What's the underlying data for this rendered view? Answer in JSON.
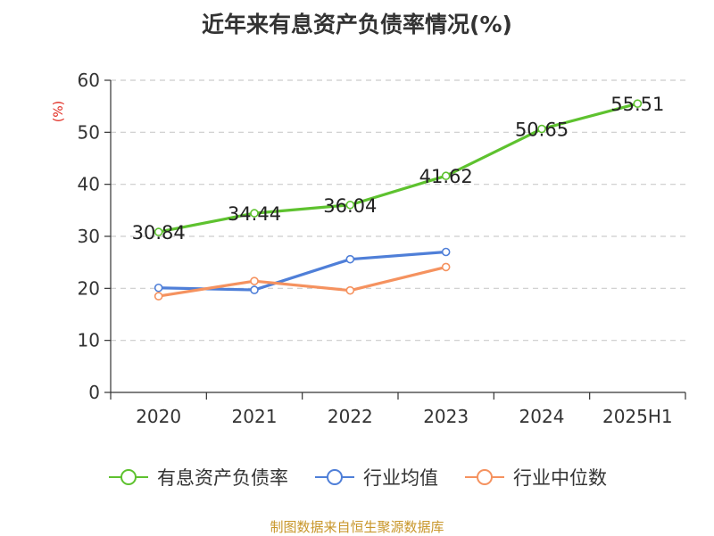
{
  "chart_data": {
    "type": "line",
    "title": "近年来有息资产负债率情况(%)",
    "ylabel": "(%)",
    "xlabel": "",
    "categories": [
      "2020",
      "2021",
      "2022",
      "2023",
      "2024",
      "2025H1"
    ],
    "ylim": [
      0,
      60
    ],
    "yticks": [
      0,
      10,
      20,
      30,
      40,
      50,
      60
    ],
    "grid": true,
    "legend_position": "bottom",
    "series": [
      {
        "name": "有息资产负债率",
        "color": "#5ec22f",
        "values": [
          30.84,
          34.44,
          36.04,
          41.62,
          50.65,
          55.51
        ],
        "labels": [
          "30.84",
          "34.44",
          "36.04",
          "41.62",
          "50.65",
          "55.51"
        ]
      },
      {
        "name": "行业均值",
        "color": "#4f7fd8",
        "values": [
          20.1,
          19.7,
          25.6,
          27.0,
          null,
          null
        ]
      },
      {
        "name": "行业中位数",
        "color": "#f5925f",
        "values": [
          18.5,
          21.4,
          19.6,
          24.1,
          null,
          null
        ]
      }
    ]
  },
  "source_text": "制图数据来自恒生聚源数据库"
}
